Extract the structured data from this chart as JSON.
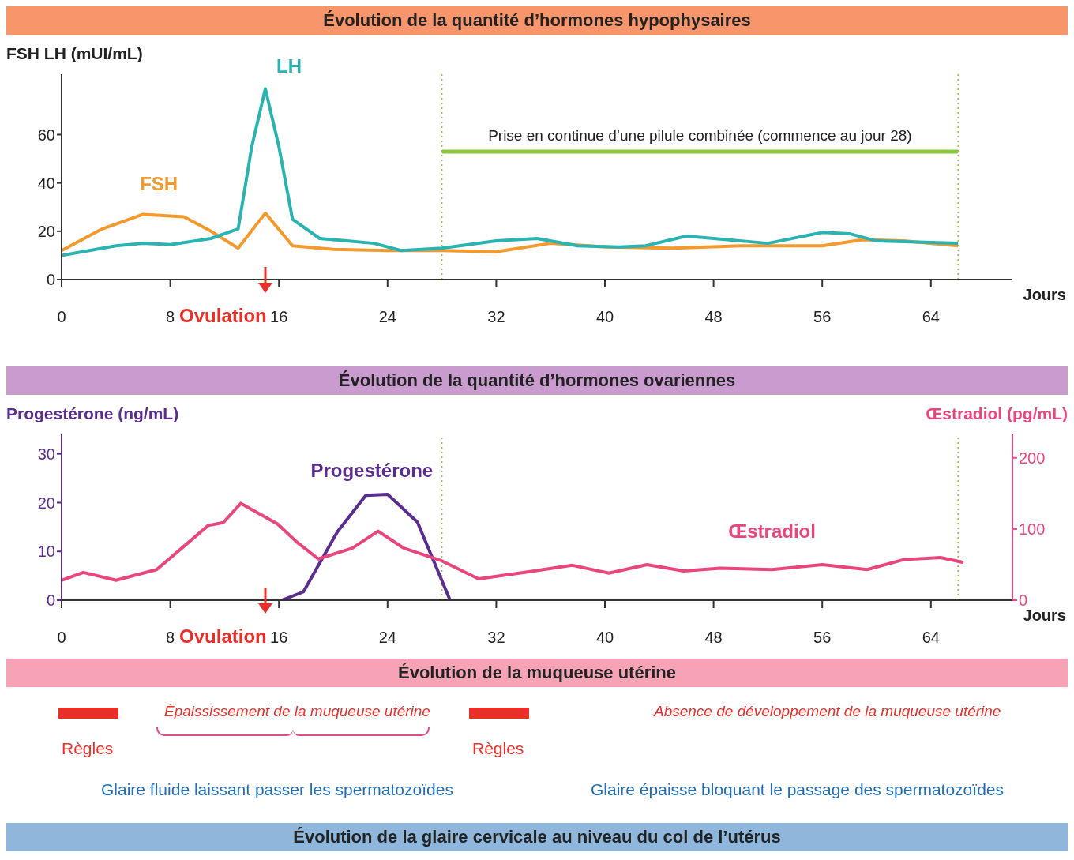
{
  "chart_data": [
    {
      "type": "line",
      "title": "Évolution de la quantité d’hormones hypophysaires",
      "ylabel": "FSH LH (mUI/mL)",
      "xlabel": "Jours",
      "xlim": [
        0,
        70
      ],
      "xticks": [
        0,
        8,
        16,
        24,
        32,
        40,
        48,
        56,
        64
      ],
      "ylim": [
        0,
        85
      ],
      "yticks": [
        0,
        20,
        40,
        60
      ],
      "series": [
        {
          "name": "FSH",
          "color": "#f39a2e",
          "x": [
            0,
            3,
            6,
            9,
            11,
            13,
            15,
            17,
            20,
            24,
            28,
            32,
            36,
            40,
            45,
            50,
            56,
            59,
            62,
            66
          ],
          "values": [
            12,
            21,
            27,
            26,
            20,
            13,
            27.5,
            14,
            12.5,
            12,
            12,
            11.5,
            15,
            13.5,
            13,
            14,
            14,
            16.5,
            16,
            14
          ]
        },
        {
          "name": "LH",
          "color": "#2bb3b1",
          "x": [
            0,
            4,
            6,
            8,
            11,
            13,
            14,
            15,
            16,
            17,
            19,
            21,
            23,
            25,
            28,
            32,
            35,
            38,
            41,
            43,
            46,
            48,
            52,
            56,
            58,
            60,
            63,
            66
          ],
          "values": [
            10,
            14,
            15,
            14.5,
            17,
            21,
            55,
            79,
            55,
            25,
            17,
            16,
            15,
            12,
            13,
            16,
            17,
            14,
            13.5,
            14,
            18,
            17,
            15,
            19.5,
            19,
            16,
            15.5,
            15
          ]
        },
        {
          "color": "#8dc63f",
          "x": [
            28,
            66
          ],
          "values": [
            53,
            53
          ]
        }
      ],
      "ref_lines": [
        {
          "axis": "x",
          "value": 28,
          "color": "#8dc63f",
          "line_style": "dotted"
        },
        {
          "axis": "x",
          "value": 66,
          "color": "#8dc63f",
          "line_style": "dotted"
        }
      ],
      "annotations": [
        {
          "text": "Prise en continue d’une pilule combinée (commence au jour 28)",
          "x": 47,
          "y": 53
        },
        "Ovulation"
      ]
    },
    {
      "type": "line",
      "title": "Évolution de la quantité d’hormones ovariennes",
      "ylabel": "Progestérone (ng/mL)",
      "y2label": "Œstradiol (pg/mL)",
      "xlabel": "Jours",
      "xlim": [
        0,
        70
      ],
      "xticks": [
        0,
        8,
        16,
        24,
        32,
        40,
        48,
        56,
        64
      ],
      "ylim": [
        0,
        34
      ],
      "yticks": [
        0,
        10,
        20,
        30
      ],
      "y2lim": [
        0,
        233
      ],
      "y2ticks": [
        0,
        100,
        200
      ],
      "series": [
        {
          "name": "Progestérone",
          "color": "#5b2d8e",
          "x": [
            16.2,
            17.8,
            20.3,
            22.4,
            24,
            26.2,
            28.6
          ],
          "values": [
            0,
            1.7,
            14,
            21.5,
            21.7,
            16,
            0
          ]
        },
        {
          "name": "Œstradiol",
          "color": "#e8467c",
          "axis": "y2",
          "x": [
            0,
            1.6,
            4,
            7,
            10.8,
            11.9,
            13.2,
            15.9,
            17.3,
            18.9,
            21.4,
            23.3,
            25.2,
            27.9,
            30.7,
            34.4,
            37.6,
            40.3,
            43.1,
            45.8,
            48.5,
            52.3,
            56,
            59.3,
            62,
            64.7,
            66.4
          ],
          "values": [
            28,
            39,
            28,
            43,
            105,
            109,
            136,
            107,
            82,
            58,
            73,
            97,
            73,
            56,
            30,
            40,
            49,
            38,
            50,
            41,
            45,
            43,
            50,
            43,
            57,
            60,
            53
          ]
        }
      ],
      "ref_lines": [
        {
          "axis": "x",
          "value": 28,
          "color": "#8dc63f",
          "line_style": "dotted"
        },
        {
          "axis": "x",
          "value": 66,
          "color": "#8dc63f",
          "line_style": "dotted"
        }
      ],
      "annotations": [
        "Ovulation"
      ]
    },
    {
      "type": "other",
      "title": "Évolution de la muqueuse utérine",
      "subtitle": "Évolution de la glaire cervicale au niveau du col de l’utérus",
      "annotations": [
        "Épaississement de la muqueuse utérine",
        "Règles",
        "Règles",
        "Absence de développement de la muqueuse utérine",
        "Glaire fluide laissant passer les spermatozoïdes",
        "Glaire épaisse bloquant le passage des spermatozoïdes"
      ]
    }
  ]
}
